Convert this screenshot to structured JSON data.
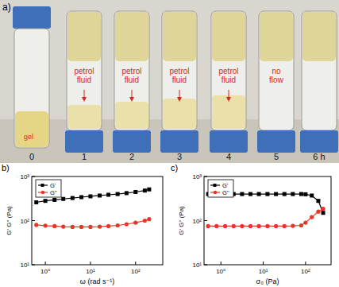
{
  "photo_panel": {
    "label": "a)",
    "vials": [
      {
        "time": "0",
        "annotation": "gel"
      },
      {
        "time": "1",
        "annotation": "petrol fluid"
      },
      {
        "time": "2",
        "annotation": "petrol fluid"
      },
      {
        "time": "3",
        "annotation": "petrol fluid"
      },
      {
        "time": "4",
        "annotation": "petrol fluid"
      },
      {
        "time": "5",
        "annotation": "no flow"
      },
      {
        "time": "6 h"
      }
    ]
  },
  "chart_data": [
    {
      "type": "line",
      "title": "b)",
      "x_label": "ω (rad s⁻¹)",
      "y_label": "G' G'' (Pa)",
      "log": true,
      "legend": "top-left",
      "xlim": [
        0.5,
        400
      ],
      "ylim": [
        10,
        1000
      ],
      "xticks": [
        {
          "value": 1,
          "label": "10⁰"
        },
        {
          "value": 10,
          "label": "10¹"
        },
        {
          "value": 100,
          "label": "10²"
        }
      ],
      "yticks": [
        {
          "value": 10,
          "label": "10¹"
        },
        {
          "value": 100,
          "label": "10²"
        },
        {
          "value": 1000,
          "label": "10³"
        }
      ],
      "x": [
        0.63,
        1,
        1.6,
        2.5,
        4,
        6.3,
        10,
        16,
        25,
        40,
        63,
        100,
        160,
        200
      ],
      "series": [
        {
          "name": "G'",
          "color": "#000000",
          "marker": "square",
          "values": [
            260,
            280,
            295,
            310,
            325,
            340,
            355,
            370,
            385,
            400,
            420,
            445,
            480,
            510
          ]
        },
        {
          "name": "G''",
          "color": "#e8352a",
          "marker": "circle",
          "values": [
            80,
            77,
            75,
            73,
            72,
            72,
            72,
            73,
            75,
            78,
            83,
            90,
            100,
            108
          ]
        }
      ]
    },
    {
      "type": "line",
      "title": "c)",
      "x_label": "σ₀ (Pa)",
      "y_label": "G' G'' (Pa)",
      "log": true,
      "legend": "top-left",
      "xlim": [
        0.4,
        400
      ],
      "ylim": [
        10,
        1000
      ],
      "xticks": [
        {
          "value": 1,
          "label": "10⁰"
        },
        {
          "value": 10,
          "label": "10¹"
        },
        {
          "value": 100,
          "label": "10²"
        }
      ],
      "yticks": [
        {
          "value": 10,
          "label": "10¹"
        },
        {
          "value": 100,
          "label": "10²"
        },
        {
          "value": 1000,
          "label": "10³"
        }
      ],
      "x": [
        0.5,
        0.79,
        1.26,
        2,
        3.16,
        5,
        7.9,
        12.6,
        20,
        31.6,
        50,
        79,
        100,
        140,
        200,
        260
      ],
      "series": [
        {
          "name": "G'",
          "color": "#000000",
          "marker": "square",
          "values": [
            400,
            400,
            400,
            400,
            400,
            400,
            400,
            400,
            400,
            400,
            400,
            400,
            395,
            370,
            280,
            150
          ]
        },
        {
          "name": "G''",
          "color": "#e8352a",
          "marker": "circle",
          "values": [
            75,
            75,
            75,
            75,
            75,
            75,
            75,
            75,
            75,
            75,
            76,
            78,
            90,
            120,
            160,
            185
          ]
        }
      ]
    }
  ]
}
